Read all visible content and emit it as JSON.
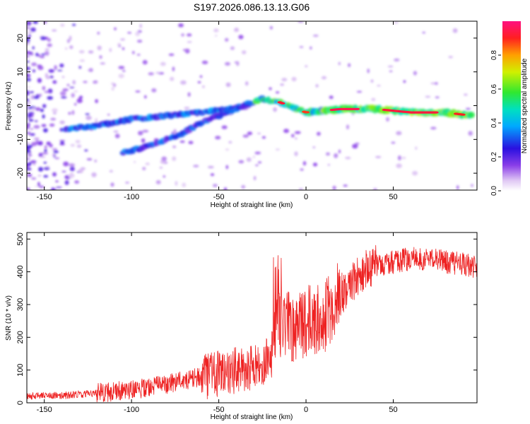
{
  "figure": {
    "title": "S197.2026.086.13.13.G06"
  },
  "chart_data": [
    {
      "type": "heatmap",
      "name": "spectrogram",
      "xlabel": "Height of straight line (km)",
      "ylabel": "Frequency (Hz)",
      "xlim": [
        -160,
        98
      ],
      "ylim": [
        -25,
        25
      ],
      "xticks": [
        -150,
        -100,
        -50,
        0,
        50
      ],
      "yticks": [
        20,
        10,
        0,
        -10,
        -20
      ],
      "colorbar": {
        "label": "Normalized spectral amplitude",
        "range": [
          0,
          1
        ],
        "ticks": [
          0.0,
          0.2,
          0.4,
          0.6,
          0.8
        ]
      },
      "ridges": [
        {
          "name": "main-ridge",
          "x": [
            -138,
            -120,
            -100,
            -80,
            -60,
            -45,
            -35,
            -25,
            -15,
            0,
            20,
            40,
            60,
            80,
            95
          ],
          "y": [
            -7,
            -6,
            -4,
            -3,
            -2,
            -1,
            0,
            2,
            1,
            -2,
            -1,
            -1,
            -2,
            -2,
            -3
          ]
        },
        {
          "name": "lower-ridge",
          "x": [
            -105,
            -90,
            -80,
            -70,
            -60,
            -50,
            -40,
            -32
          ],
          "y": [
            -14,
            -12,
            -10,
            -8,
            -5,
            -3,
            -1,
            1
          ]
        }
      ]
    },
    {
      "type": "line",
      "name": "snr",
      "xlabel": "Height of straight line (km)",
      "ylabel": "SNR (10 * v/v)",
      "xlim": [
        -160,
        98
      ],
      "ylim": [
        0,
        520
      ],
      "xticks": [
        -150,
        -100,
        -50,
        0,
        50
      ],
      "yticks": [
        0,
        100,
        200,
        300,
        400,
        500
      ],
      "color": "#ee2222",
      "series": [
        {
          "name": "snr-trend",
          "x": [
            -160,
            -140,
            -120,
            -100,
            -80,
            -60,
            -40,
            -25,
            -18,
            -15,
            -10,
            0,
            10,
            20,
            30,
            40,
            50,
            60,
            70,
            80,
            90,
            98
          ],
          "y": [
            20,
            22,
            30,
            40,
            55,
            80,
            100,
            120,
            200,
            250,
            230,
            250,
            260,
            330,
            390,
            420,
            430,
            440,
            440,
            430,
            425,
            410
          ]
        }
      ]
    }
  ]
}
